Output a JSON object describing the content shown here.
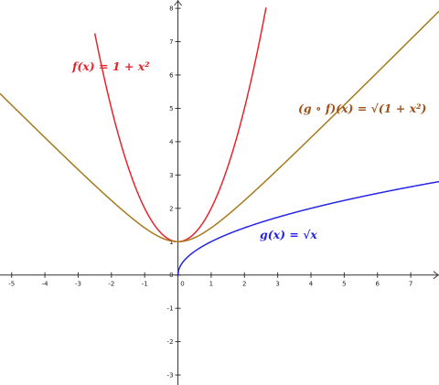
{
  "chart_data": {
    "type": "line",
    "title": "",
    "xlabel": "",
    "ylabel": "",
    "xlim": [
      -5.35,
      7.85
    ],
    "ylim": [
      -3.3,
      8.25
    ],
    "x_ticks": [
      -5,
      -4,
      -3,
      -2,
      -1,
      0,
      1,
      2,
      3,
      4,
      5,
      6,
      7
    ],
    "y_ticks": [
      -3,
      -2,
      -1,
      0,
      1,
      2,
      3,
      4,
      5,
      6,
      7,
      8
    ],
    "grid": false,
    "series": [
      {
        "name": "f(x) = 1 + x²",
        "formula": "1 + x^2",
        "color": "#e8242f",
        "x": [
          -2.5,
          -2,
          -1.5,
          -1,
          -0.5,
          0,
          0.5,
          1,
          1.5,
          2,
          2.65
        ],
        "y": [
          7.25,
          5,
          3.25,
          2,
          1.25,
          1,
          1.25,
          2,
          3.25,
          5,
          8.02
        ]
      },
      {
        "name": "g(x) = √x",
        "formula": "sqrt(x)",
        "color": "#2525e6",
        "x": [
          0,
          0.25,
          1,
          2,
          3,
          4,
          5,
          6,
          7,
          7.85
        ],
        "y": [
          0,
          0.5,
          1,
          1.41,
          1.73,
          2,
          2.24,
          2.45,
          2.65,
          2.8
        ]
      },
      {
        "name": "(g ∘ f)(x) = √(1 + x²)",
        "formula": "sqrt(1 + x^2)",
        "color": "#a67a1c",
        "x": [
          -5.35,
          -4,
          -3,
          -2,
          -1,
          0,
          1,
          2,
          3,
          4,
          5,
          6,
          7,
          7.85
        ],
        "y": [
          5.44,
          4.12,
          3.16,
          2.24,
          1.41,
          1,
          1.41,
          2.24,
          3.16,
          4.12,
          5.1,
          6.08,
          7.07,
          7.91
        ]
      }
    ],
    "annotations": [
      {
        "text": "f(x) = 1 + x²",
        "color": "#e8242f"
      },
      {
        "text": "(g ∘ f)(x) = √(1 + x²)",
        "color": "#a0521d"
      },
      {
        "text": "g(x) = √x",
        "color": "#2525e6"
      }
    ]
  }
}
